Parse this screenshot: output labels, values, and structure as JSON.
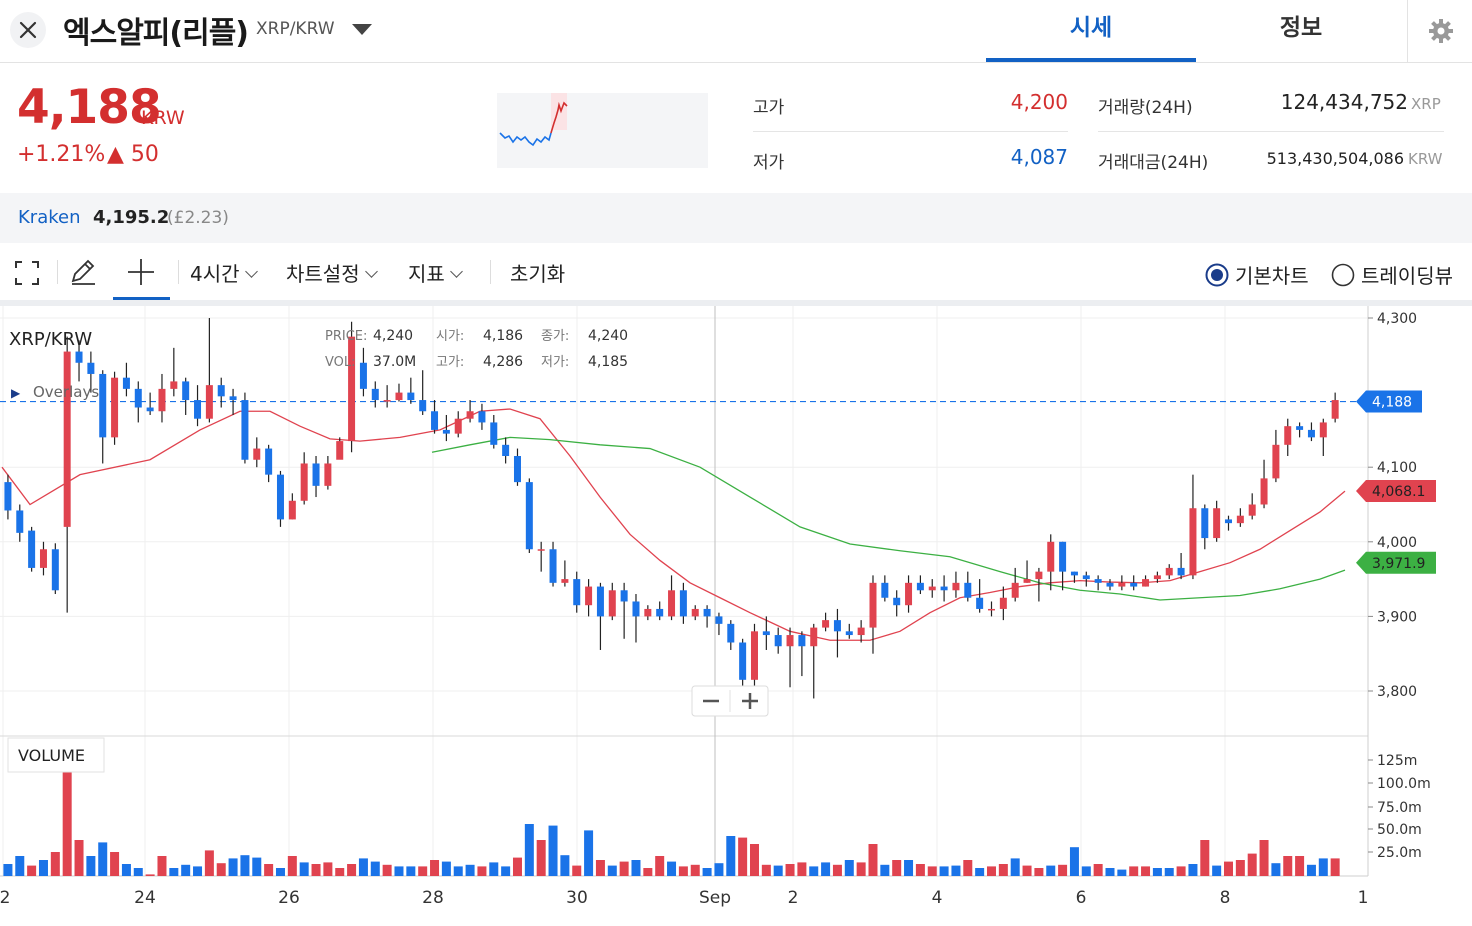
{
  "header": {
    "close_icon": "close-icon",
    "coin_name": "엑스알피(리플)",
    "pair": "XRP/KRW",
    "tabs": [
      {
        "label": "시세",
        "active": true
      },
      {
        "label": "정보",
        "active": false
      }
    ],
    "settings_icon": "gear-icon"
  },
  "summary": {
    "price": "4,188",
    "unit": "KRW",
    "change_pct": "+1.21%",
    "change_abs": "▲ 50",
    "high_label": "고가",
    "high": "4,200",
    "low_label": "저가",
    "low": "4,087",
    "volume_label": "거래량(24H)",
    "volume": "124,434,752",
    "volume_unit": "XRP",
    "turnover_label": "거래대금(24H)",
    "turnover": "513,430,504,086",
    "turnover_unit": "KRW"
  },
  "exchange": {
    "name": "Kraken",
    "price": "4,195.2",
    "sub": "(£2.23)"
  },
  "toolbar": {
    "fullscreen_icon": "fullscreen-icon",
    "pencil_icon": "pencil-icon",
    "crosshair_icon": "crosshair-icon",
    "interval": "4시간",
    "chart_settings": "차트설정",
    "indicators": "지표",
    "reset": "초기화",
    "view_basic": "기본차트",
    "view_tradingview": "트레이딩뷰"
  },
  "colors": {
    "up": "#e0434f",
    "down": "#1a73e8",
    "ma_short": "#e0434f",
    "ma_long": "#3cb043",
    "brand": "#1261c4"
  },
  "chart_data": {
    "type": "candlestick",
    "symbol": "XRP/KRW",
    "overlays_label": "Overlays",
    "volume_label": "VOLUME",
    "info": {
      "price_label": "PRICE:",
      "price": "4,240",
      "vol_label": "VOL:",
      "vol": "37.0M",
      "open_label": "시가:",
      "open": "4,186",
      "high_label": "고가:",
      "high": "4,286",
      "close_label": "종가:",
      "close": "4,240",
      "low_label": "저가:",
      "low": "4,185"
    },
    "ylim": [
      3750,
      4310
    ],
    "yticks": [
      {
        "value": 4300,
        "label": "4,300"
      },
      {
        "value": 4100,
        "label": "4,100"
      },
      {
        "value": 4000,
        "label": "4,000"
      },
      {
        "value": 3900,
        "label": "3,900"
      },
      {
        "value": 3800,
        "label": "3,800"
      }
    ],
    "xticks": [
      "2",
      "24",
      "26",
      "28",
      "30",
      "Sep",
      "2",
      "4",
      "6",
      "8",
      "1"
    ],
    "volume_ticks": [
      "125m",
      "100.0m",
      "75.0m",
      "50.0m",
      "25.0m"
    ],
    "price_tags": [
      {
        "label": "4,188",
        "value": 4188,
        "kind": "last"
      },
      {
        "label": "4,068.1",
        "value": 4068.1,
        "kind": "ma_short"
      },
      {
        "label": "3,971.9",
        "value": 3971.9,
        "kind": "ma_long"
      }
    ],
    "candles": [
      [
        4080,
        4042,
        4090,
        4030
      ],
      [
        4042,
        4012,
        4050,
        4000
      ],
      [
        4015,
        3965,
        4020,
        3960
      ],
      [
        3965,
        3990,
        4000,
        3955
      ],
      [
        3990,
        3935,
        3998,
        3930
      ],
      [
        4020,
        4255,
        4275,
        3905
      ],
      [
        4255,
        4240,
        4270,
        4215
      ],
      [
        4240,
        4225,
        4255,
        4200
      ],
      [
        4225,
        4140,
        4230,
        4105
      ],
      [
        4140,
        4220,
        4228,
        4130
      ],
      [
        4220,
        4205,
        4240,
        4195
      ],
      [
        4205,
        4180,
        4215,
        4160
      ],
      [
        4180,
        4175,
        4200,
        4170
      ],
      [
        4175,
        4205,
        4225,
        4160
      ],
      [
        4205,
        4215,
        4260,
        4195
      ],
      [
        4215,
        4190,
        4220,
        4170
      ],
      [
        4190,
        4165,
        4210,
        4155
      ],
      [
        4165,
        4210,
        4300,
        4160
      ],
      [
        4210,
        4195,
        4220,
        4180
      ],
      [
        4195,
        4190,
        4205,
        4170
      ],
      [
        4190,
        4110,
        4200,
        4105
      ],
      [
        4110,
        4125,
        4140,
        4100
      ],
      [
        4125,
        4090,
        4130,
        4080
      ],
      [
        4090,
        4030,
        4095,
        4020
      ],
      [
        4030,
        4055,
        4065,
        4030
      ],
      [
        4055,
        4105,
        4120,
        4050
      ],
      [
        4105,
        4075,
        4115,
        4060
      ],
      [
        4075,
        4105,
        4115,
        4070
      ],
      [
        4110,
        4135,
        4140,
        4125
      ],
      [
        4135,
        4275,
        4295,
        4120
      ],
      [
        4240,
        4205,
        4260,
        4195
      ],
      [
        4205,
        4190,
        4215,
        4180
      ],
      [
        4190,
        4190,
        4210,
        4180
      ],
      [
        4190,
        4200,
        4212,
        4188
      ],
      [
        4200,
        4190,
        4220,
        4185
      ],
      [
        4190,
        4175,
        4230,
        4170
      ],
      [
        4175,
        4150,
        4190,
        4145
      ],
      [
        4150,
        4145,
        4170,
        4135
      ],
      [
        4145,
        4165,
        4175,
        4140
      ],
      [
        4165,
        4175,
        4190,
        4160
      ],
      [
        4175,
        4160,
        4185,
        4150
      ],
      [
        4160,
        4130,
        4170,
        4125
      ],
      [
        4130,
        4115,
        4140,
        4105
      ],
      [
        4115,
        4080,
        4125,
        4075
      ],
      [
        4080,
        3990,
        4085,
        3985
      ],
      [
        3990,
        3990,
        4000,
        3960
      ],
      [
        3990,
        3945,
        4000,
        3940
      ],
      [
        3945,
        3950,
        3975,
        3940
      ],
      [
        3950,
        3915,
        3960,
        3905
      ],
      [
        3915,
        3940,
        3950,
        3900
      ],
      [
        3940,
        3900,
        3945,
        3855
      ],
      [
        3900,
        3935,
        3945,
        3895
      ],
      [
        3935,
        3920,
        3945,
        3870
      ],
      [
        3920,
        3900,
        3930,
        3865
      ],
      [
        3900,
        3910,
        3915,
        3895
      ],
      [
        3910,
        3900,
        3920,
        3895
      ],
      [
        3900,
        3935,
        3955,
        3895
      ],
      [
        3935,
        3900,
        3945,
        3890
      ],
      [
        3900,
        3910,
        3915,
        3895
      ],
      [
        3910,
        3900,
        3915,
        3885
      ],
      [
        3900,
        3890,
        3905,
        3875
      ],
      [
        3890,
        3865,
        3895,
        3855
      ],
      [
        3865,
        3815,
        3870,
        3805
      ],
      [
        3815,
        3880,
        3890,
        3770
      ],
      [
        3880,
        3875,
        3900,
        3855
      ],
      [
        3875,
        3860,
        3885,
        3850
      ],
      [
        3860,
        3875,
        3885,
        3805
      ],
      [
        3875,
        3860,
        3880,
        3820
      ],
      [
        3860,
        3885,
        3890,
        3790
      ],
      [
        3885,
        3895,
        3905,
        3880
      ],
      [
        3895,
        3880,
        3910,
        3845
      ],
      [
        3880,
        3875,
        3890,
        3870
      ],
      [
        3875,
        3885,
        3895,
        3865
      ],
      [
        3885,
        3945,
        3955,
        3850
      ],
      [
        3945,
        3925,
        3955,
        3920
      ],
      [
        3925,
        3915,
        3935,
        3900
      ],
      [
        3915,
        3945,
        3955,
        3905
      ],
      [
        3945,
        3935,
        3955,
        3930
      ],
      [
        3935,
        3940,
        3950,
        3925
      ],
      [
        3940,
        3935,
        3955,
        3920
      ],
      [
        3935,
        3945,
        3960,
        3925
      ],
      [
        3945,
        3925,
        3960,
        3920
      ],
      [
        3925,
        3910,
        3950,
        3905
      ],
      [
        3910,
        3910,
        3920,
        3900
      ],
      [
        3910,
        3925,
        3940,
        3895
      ],
      [
        3925,
        3945,
        3965,
        3920
      ],
      [
        3945,
        3950,
        3975,
        3945
      ],
      [
        3950,
        3960,
        3965,
        3920
      ],
      [
        3960,
        4000,
        4010,
        3935
      ],
      [
        4000,
        3960,
        4000,
        3935
      ],
      [
        3960,
        3955,
        3960,
        3945
      ],
      [
        3955,
        3950,
        3960,
        3940
      ],
      [
        3950,
        3945,
        3955,
        3935
      ],
      [
        3945,
        3940,
        3950,
        3935
      ],
      [
        3940,
        3945,
        3955,
        3935
      ],
      [
        3945,
        3940,
        3955,
        3935
      ],
      [
        3940,
        3950,
        3955,
        3940
      ],
      [
        3950,
        3955,
        3960,
        3945
      ],
      [
        3955,
        3965,
        3970,
        3950
      ],
      [
        3965,
        3955,
        3985,
        3950
      ],
      [
        3955,
        4045,
        4090,
        3950
      ],
      [
        4045,
        4005,
        4050,
        3990
      ],
      [
        4005,
        4045,
        4055,
        4000
      ],
      [
        4030,
        4025,
        4035,
        4015
      ],
      [
        4025,
        4035,
        4045,
        4020
      ],
      [
        4035,
        4050,
        4065,
        4030
      ],
      [
        4050,
        4085,
        4110,
        4045
      ],
      [
        4085,
        4130,
        4150,
        4080
      ],
      [
        4130,
        4155,
        4165,
        4115
      ],
      [
        4155,
        4150,
        4160,
        4140
      ],
      [
        4150,
        4140,
        4160,
        4135
      ],
      [
        4140,
        4160,
        4165,
        4115
      ],
      [
        4165,
        4190,
        4200,
        4160
      ]
    ],
    "volumes": [
      [
        15,
        "d"
      ],
      [
        25,
        "d"
      ],
      [
        13,
        "r"
      ],
      [
        20,
        "d"
      ],
      [
        30,
        "r"
      ],
      [
        140,
        "r"
      ],
      [
        45,
        "r"
      ],
      [
        25,
        "d"
      ],
      [
        42,
        "d"
      ],
      [
        30,
        "r"
      ],
      [
        15,
        "d"
      ],
      [
        10,
        "d"
      ],
      [
        2,
        "r"
      ],
      [
        25,
        "r"
      ],
      [
        10,
        "d"
      ],
      [
        14,
        "d"
      ],
      [
        12,
        "d"
      ],
      [
        32,
        "r"
      ],
      [
        16,
        "r"
      ],
      [
        22,
        "d"
      ],
      [
        26,
        "d"
      ],
      [
        23,
        "d"
      ],
      [
        15,
        "r"
      ],
      [
        10,
        "d"
      ],
      [
        25,
        "r"
      ],
      [
        17,
        "d"
      ],
      [
        15,
        "r"
      ],
      [
        17,
        "r"
      ],
      [
        10,
        "r"
      ],
      [
        15,
        "r"
      ],
      [
        22,
        "d"
      ],
      [
        18,
        "d"
      ],
      [
        14,
        "r"
      ],
      [
        12,
        "d"
      ],
      [
        12,
        "d"
      ],
      [
        12,
        "r"
      ],
      [
        20,
        "r"
      ],
      [
        18,
        "d"
      ],
      [
        12,
        "d"
      ],
      [
        14,
        "d"
      ],
      [
        12,
        "r"
      ],
      [
        17,
        "d"
      ],
      [
        12,
        "d"
      ],
      [
        23,
        "r"
      ],
      [
        65,
        "d"
      ],
      [
        45,
        "r"
      ],
      [
        63,
        "d"
      ],
      [
        26,
        "d"
      ],
      [
        13,
        "r"
      ],
      [
        57,
        "d"
      ],
      [
        20,
        "r"
      ],
      [
        13,
        "d"
      ],
      [
        18,
        "r"
      ],
      [
        20,
        "d"
      ],
      [
        10,
        "r"
      ],
      [
        25,
        "r"
      ],
      [
        18,
        "d"
      ],
      [
        12,
        "r"
      ],
      [
        14,
        "r"
      ],
      [
        10,
        "d"
      ],
      [
        16,
        "d"
      ],
      [
        50,
        "d"
      ],
      [
        48,
        "r"
      ],
      [
        40,
        "r"
      ],
      [
        14,
        "r"
      ],
      [
        13,
        "d"
      ],
      [
        15,
        "r"
      ],
      [
        17,
        "r"
      ],
      [
        12,
        "d"
      ],
      [
        17,
        "d"
      ],
      [
        14,
        "r"
      ],
      [
        20,
        "d"
      ],
      [
        17,
        "r"
      ],
      [
        40,
        "r"
      ],
      [
        14,
        "d"
      ],
      [
        20,
        "r"
      ],
      [
        20,
        "d"
      ],
      [
        15,
        "r"
      ],
      [
        12,
        "r"
      ],
      [
        12,
        "d"
      ],
      [
        13,
        "d"
      ],
      [
        20,
        "r"
      ],
      [
        10,
        "d"
      ],
      [
        12,
        "r"
      ],
      [
        15,
        "r"
      ],
      [
        22,
        "d"
      ],
      [
        13,
        "r"
      ],
      [
        10,
        "r"
      ],
      [
        13,
        "d"
      ],
      [
        14,
        "r"
      ],
      [
        36,
        "d"
      ],
      [
        12,
        "d"
      ],
      [
        15,
        "r"
      ],
      [
        10,
        "d"
      ],
      [
        8,
        "d"
      ],
      [
        12,
        "r"
      ],
      [
        12,
        "r"
      ],
      [
        10,
        "d"
      ],
      [
        10,
        "d"
      ],
      [
        12,
        "r"
      ],
      [
        15,
        "d"
      ],
      [
        45,
        "r"
      ],
      [
        13,
        "d"
      ],
      [
        18,
        "r"
      ],
      [
        20,
        "r"
      ],
      [
        28,
        "r"
      ],
      [
        45,
        "r"
      ],
      [
        16,
        "d"
      ],
      [
        25,
        "r"
      ],
      [
        25,
        "r"
      ],
      [
        14,
        "d"
      ],
      [
        22,
        "d"
      ],
      [
        22,
        "r"
      ]
    ],
    "ma_short": [
      [
        2,
        4100
      ],
      [
        30,
        4050
      ],
      [
        80,
        4090
      ],
      [
        150,
        4110
      ],
      [
        200,
        4150
      ],
      [
        240,
        4175
      ],
      [
        270,
        4175
      ],
      [
        300,
        4155
      ],
      [
        330,
        4138
      ],
      [
        360,
        4135
      ],
      [
        400,
        4140
      ],
      [
        440,
        4150
      ],
      [
        480,
        4175
      ],
      [
        510,
        4178
      ],
      [
        540,
        4165
      ],
      [
        570,
        4115
      ],
      [
        600,
        4060
      ],
      [
        630,
        4010
      ],
      [
        660,
        3975
      ],
      [
        690,
        3945
      ],
      [
        720,
        3925
      ],
      [
        750,
        3905
      ],
      [
        790,
        3880
      ],
      [
        830,
        3868
      ],
      [
        870,
        3868
      ],
      [
        900,
        3880
      ],
      [
        930,
        3905
      ],
      [
        960,
        3925
      ],
      [
        990,
        3932
      ],
      [
        1020,
        3940
      ],
      [
        1050,
        3945
      ],
      [
        1080,
        3948
      ],
      [
        1110,
        3946
      ],
      [
        1140,
        3945
      ],
      [
        1170,
        3948
      ],
      [
        1200,
        3960
      ],
      [
        1230,
        3972
      ],
      [
        1260,
        3990
      ],
      [
        1290,
        4015
      ],
      [
        1320,
        4040
      ],
      [
        1345,
        4068
      ]
    ],
    "ma_long": [
      [
        432,
        4120
      ],
      [
        470,
        4130
      ],
      [
        510,
        4140
      ],
      [
        550,
        4137
      ],
      [
        600,
        4130
      ],
      [
        650,
        4125
      ],
      [
        700,
        4100
      ],
      [
        750,
        4060
      ],
      [
        800,
        4020
      ],
      [
        850,
        3997
      ],
      [
        900,
        3988
      ],
      [
        950,
        3980
      ],
      [
        1000,
        3960
      ],
      [
        1040,
        3945
      ],
      [
        1080,
        3935
      ],
      [
        1120,
        3930
      ],
      [
        1160,
        3922
      ],
      [
        1200,
        3925
      ],
      [
        1240,
        3928
      ],
      [
        1280,
        3937
      ],
      [
        1320,
        3950
      ],
      [
        1345,
        3962
      ]
    ]
  }
}
